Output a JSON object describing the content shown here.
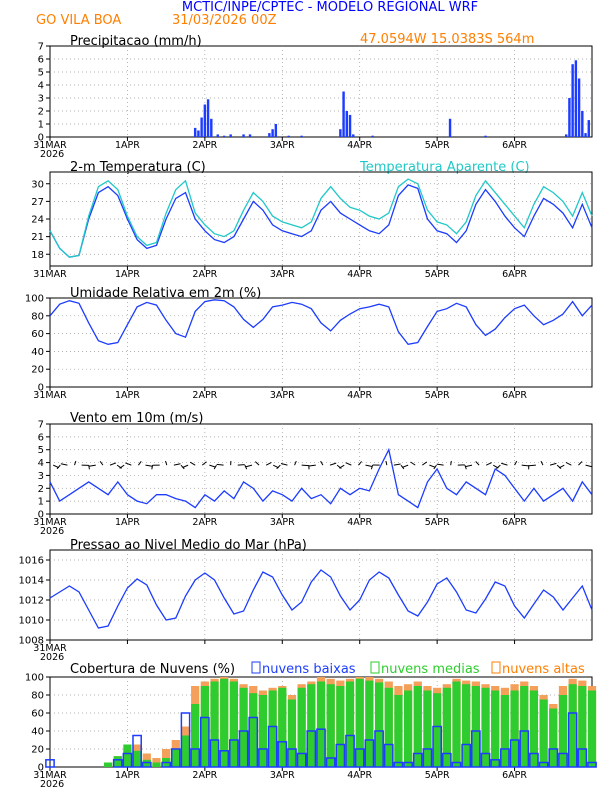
{
  "header": {
    "title": "MCTIC/INPE/CPTEC - MODELO REGIONAL WRF",
    "location": "GO VILA BOA",
    "run": "31/03/2026 00Z",
    "coords": "47.0594W 15.0383S 564m"
  },
  "colors": {
    "header_blue": "#0000ff",
    "header_orange": "#ff7f00",
    "series_blue": "#1c3cff",
    "apparent_cyan": "#20c8c8",
    "cloud_green": "#2ecc2e",
    "cloud_orange": "#f5a05a",
    "cloud_blue": "#1c3cff"
  },
  "x_axis": {
    "ticks": [
      {
        "label": "31MAR",
        "year": "2026",
        "hour": 0
      },
      {
        "label": "1APR",
        "year": "",
        "hour": 24
      },
      {
        "label": "2APR",
        "year": "",
        "hour": 48
      },
      {
        "label": "3APR",
        "year": "",
        "hour": 72
      },
      {
        "label": "4APR",
        "year": "",
        "hour": 96
      },
      {
        "label": "5APR",
        "year": "",
        "hour": 120
      },
      {
        "label": "6APR",
        "year": "",
        "hour": 144
      }
    ],
    "start_hour": 0,
    "end_hour": 168
  },
  "chart_data": [
    {
      "id": "precip",
      "type": "bar",
      "title": "Precipitacao (mm/h)",
      "ylim": [
        0,
        7
      ],
      "yticks": [
        0,
        1,
        2,
        3,
        4,
        5,
        6,
        7
      ],
      "x": [
        45,
        46,
        47,
        48,
        49,
        50,
        52,
        54,
        56,
        60,
        62,
        68,
        69,
        70,
        74,
        78,
        90,
        91,
        92,
        93,
        94,
        100,
        124,
        135,
        160,
        161,
        162,
        163,
        164,
        165,
        166,
        167
      ],
      "values": [
        0.7,
        0.5,
        1.5,
        2.5,
        2.9,
        1.4,
        0.2,
        0.1,
        0.2,
        0.2,
        0.2,
        0.3,
        0.6,
        1.0,
        0.1,
        0.1,
        0.6,
        3.5,
        2.0,
        1.7,
        0.2,
        0.1,
        1.4,
        0.1,
        0.2,
        3.0,
        5.6,
        5.9,
        4.5,
        2.0,
        0.3,
        1.3
      ]
    },
    {
      "id": "temp",
      "type": "line",
      "title": "2-m Temperatura (C)",
      "legend": "Temperatura Aparente (C)",
      "ylim": [
        16,
        32
      ],
      "yticks": [
        18,
        21,
        24,
        27,
        30
      ],
      "x": [
        0,
        3,
        6,
        9,
        12,
        15,
        18,
        21,
        24,
        27,
        30,
        33,
        36,
        39,
        42,
        45,
        48,
        51,
        54,
        57,
        60,
        63,
        66,
        69,
        72,
        75,
        78,
        81,
        84,
        87,
        90,
        93,
        96,
        99,
        102,
        105,
        108,
        111,
        114,
        117,
        120,
        123,
        126,
        129,
        132,
        135,
        138,
        141,
        144,
        147,
        150,
        153,
        156,
        159,
        162,
        165,
        168
      ],
      "series": [
        {
          "name": "2-m Temperatura",
          "values": [
            22,
            19,
            17.5,
            17.8,
            24,
            28.5,
            29.5,
            28,
            24,
            20.5,
            19,
            19.5,
            24,
            27.5,
            28.5,
            24,
            22,
            20.5,
            20,
            21,
            24,
            27,
            25.5,
            23,
            22,
            21.5,
            21,
            22,
            25.5,
            27,
            25,
            24,
            23,
            22,
            21.5,
            23,
            28,
            29.8,
            29.2,
            24,
            22,
            21.5,
            20,
            22,
            26.5,
            29,
            27,
            24.5,
            22.5,
            21,
            24.5,
            27.5,
            26.5,
            25,
            22.5,
            26.5,
            22.5
          ]
        },
        {
          "name": "Temperatura Aparente",
          "values": [
            22,
            19,
            17.5,
            17.8,
            24.5,
            29.5,
            30.5,
            29,
            24.5,
            21,
            19.5,
            20,
            25,
            29,
            30.5,
            25,
            23,
            21.5,
            21,
            22,
            25.5,
            28.5,
            27,
            24.5,
            23.5,
            23,
            22.5,
            23.5,
            27.5,
            29.5,
            27.5,
            26,
            25.5,
            24.5,
            24,
            25,
            29.5,
            30.8,
            30,
            25.5,
            23.5,
            23,
            21.5,
            23.5,
            28,
            30.5,
            28.5,
            26.5,
            24.5,
            22.5,
            26.5,
            29.5,
            28.5,
            27,
            24.5,
            28.5,
            24.5
          ]
        }
      ]
    },
    {
      "id": "rh",
      "type": "line",
      "title": "Umidade Relativa em 2m (%)",
      "ylim": [
        0,
        100
      ],
      "yticks": [
        0,
        20,
        40,
        60,
        80,
        100
      ],
      "x": [
        0,
        3,
        6,
        9,
        12,
        15,
        18,
        21,
        24,
        27,
        30,
        33,
        36,
        39,
        42,
        45,
        48,
        51,
        54,
        57,
        60,
        63,
        66,
        69,
        72,
        75,
        78,
        81,
        84,
        87,
        90,
        93,
        96,
        99,
        102,
        105,
        108,
        111,
        114,
        117,
        120,
        123,
        126,
        129,
        132,
        135,
        138,
        141,
        144,
        147,
        150,
        153,
        156,
        159,
        162,
        165,
        168
      ],
      "series": [
        {
          "name": "Umidade Relativa",
          "values": [
            80,
            93,
            97,
            94,
            72,
            52,
            48,
            50,
            70,
            90,
            95,
            92,
            75,
            60,
            56,
            85,
            96,
            98,
            97,
            90,
            76,
            67,
            76,
            90,
            92,
            95,
            93,
            88,
            72,
            63,
            75,
            82,
            88,
            90,
            93,
            90,
            62,
            48,
            50,
            68,
            85,
            88,
            94,
            90,
            70,
            58,
            65,
            78,
            88,
            92,
            80,
            70,
            75,
            82,
            96,
            80,
            92
          ]
        }
      ]
    },
    {
      "id": "wind",
      "type": "line",
      "title": "Vento em 10m (m/s)",
      "ylim": [
        0,
        7
      ],
      "yticks": [
        0,
        1,
        2,
        3,
        4,
        5,
        6,
        7
      ],
      "x": [
        0,
        3,
        6,
        9,
        12,
        15,
        18,
        21,
        24,
        27,
        30,
        33,
        36,
        39,
        42,
        45,
        48,
        51,
        54,
        57,
        60,
        63,
        66,
        69,
        72,
        75,
        78,
        81,
        84,
        87,
        90,
        93,
        96,
        99,
        102,
        105,
        108,
        111,
        114,
        117,
        120,
        123,
        126,
        129,
        132,
        135,
        138,
        141,
        144,
        147,
        150,
        153,
        156,
        159,
        162,
        165,
        168
      ],
      "series": [
        {
          "name": "Vento em 10m",
          "values": [
            2.5,
            1.0,
            1.5,
            2.0,
            2.5,
            2.0,
            1.5,
            2.5,
            1.5,
            1.0,
            0.8,
            1.5,
            1.5,
            1.2,
            1.0,
            0.5,
            1.5,
            1.0,
            1.8,
            1.2,
            2.5,
            2.0,
            1.0,
            1.8,
            1.5,
            1.0,
            2.0,
            1.2,
            1.5,
            0.8,
            2.0,
            1.5,
            2.0,
            1.8,
            3.5,
            5.0,
            1.5,
            1.0,
            0.5,
            2.5,
            3.5,
            2.0,
            1.5,
            2.5,
            2.0,
            1.5,
            3.5,
            3.0,
            2.0,
            1.0,
            2.0,
            1.0,
            1.5,
            2.0,
            1.0,
            2.5,
            1.5
          ]
        }
      ]
    },
    {
      "id": "pressure",
      "type": "line",
      "title": "Pressao ao Nivel Medio do Mar (hPa)",
      "ylim": [
        1008,
        1017
      ],
      "yticks": [
        1008,
        1010,
        1012,
        1014,
        1016
      ],
      "x": [
        0,
        3,
        6,
        9,
        12,
        15,
        18,
        21,
        24,
        27,
        30,
        33,
        36,
        39,
        42,
        45,
        48,
        51,
        54,
        57,
        60,
        63,
        66,
        69,
        72,
        75,
        78,
        81,
        84,
        87,
        90,
        93,
        96,
        99,
        102,
        105,
        108,
        111,
        114,
        117,
        120,
        123,
        126,
        129,
        132,
        135,
        138,
        141,
        144,
        147,
        150,
        153,
        156,
        159,
        162,
        165,
        168
      ],
      "series": [
        {
          "name": "Pressao",
          "values": [
            1012.2,
            1012.8,
            1013.4,
            1012.8,
            1011.0,
            1009.2,
            1009.4,
            1011.4,
            1013.2,
            1014.1,
            1013.5,
            1011.5,
            1010.0,
            1010.2,
            1012.4,
            1014.0,
            1014.7,
            1014.0,
            1012.2,
            1010.6,
            1010.9,
            1013.0,
            1014.8,
            1014.3,
            1012.5,
            1011.0,
            1011.8,
            1013.8,
            1015.0,
            1014.3,
            1012.4,
            1011.0,
            1012.0,
            1014.0,
            1014.8,
            1014.2,
            1012.5,
            1010.9,
            1010.4,
            1011.8,
            1013.6,
            1014.2,
            1012.8,
            1011.0,
            1010.7,
            1012.1,
            1013.8,
            1013.4,
            1011.4,
            1010.2,
            1011.6,
            1013.0,
            1012.3,
            1011.0,
            1012.2,
            1013.4,
            1011.0
          ]
        }
      ]
    },
    {
      "id": "clouds",
      "type": "bar",
      "title": "Cobertura de Nuvens (%)",
      "legend": [
        "nuvens baixas",
        "nuvens medias",
        "nuvens altas"
      ],
      "ylim": [
        0,
        100
      ],
      "yticks": [
        0,
        20,
        40,
        60,
        80,
        100
      ],
      "x": [
        0,
        3,
        6,
        9,
        12,
        15,
        18,
        21,
        24,
        27,
        30,
        33,
        36,
        39,
        42,
        45,
        48,
        51,
        54,
        57,
        60,
        63,
        66,
        69,
        72,
        75,
        78,
        81,
        84,
        87,
        90,
        93,
        96,
        99,
        102,
        105,
        108,
        111,
        114,
        117,
        120,
        123,
        126,
        129,
        132,
        135,
        138,
        141,
        144,
        147,
        150,
        153,
        156,
        159,
        162,
        165,
        168
      ],
      "series": [
        {
          "name": "nuvens altas",
          "values": [
            0,
            0,
            0,
            0,
            0,
            0,
            5,
            12,
            20,
            25,
            15,
            10,
            20,
            30,
            45,
            90,
            95,
            98,
            100,
            98,
            92,
            90,
            85,
            88,
            90,
            80,
            92,
            95,
            100,
            98,
            96,
            98,
            100,
            100,
            98,
            95,
            90,
            92,
            95,
            90,
            88,
            92,
            98,
            96,
            95,
            92,
            90,
            88,
            92,
            95,
            90,
            80,
            70,
            90,
            98,
            96,
            90
          ]
        },
        {
          "name": "nuvens medias",
          "values": [
            0,
            0,
            0,
            0,
            0,
            0,
            5,
            12,
            25,
            18,
            8,
            5,
            10,
            20,
            35,
            70,
            90,
            95,
            98,
            95,
            88,
            82,
            80,
            85,
            88,
            75,
            88,
            92,
            95,
            92,
            90,
            95,
            98,
            96,
            94,
            88,
            80,
            85,
            90,
            85,
            82,
            88,
            95,
            92,
            90,
            88,
            85,
            80,
            85,
            90,
            85,
            75,
            65,
            80,
            92,
            90,
            85
          ]
        },
        {
          "name": "nuvens baixas",
          "values": [
            8,
            0,
            0,
            0,
            0,
            0,
            0,
            8,
            15,
            35,
            5,
            0,
            5,
            20,
            60,
            20,
            55,
            30,
            18,
            30,
            40,
            55,
            20,
            45,
            28,
            20,
            15,
            40,
            42,
            10,
            25,
            35,
            20,
            30,
            40,
            25,
            5,
            5,
            15,
            20,
            45,
            15,
            5,
            25,
            40,
            15,
            8,
            20,
            30,
            40,
            15,
            5,
            20,
            15,
            60,
            20,
            5
          ]
        }
      ]
    }
  ]
}
